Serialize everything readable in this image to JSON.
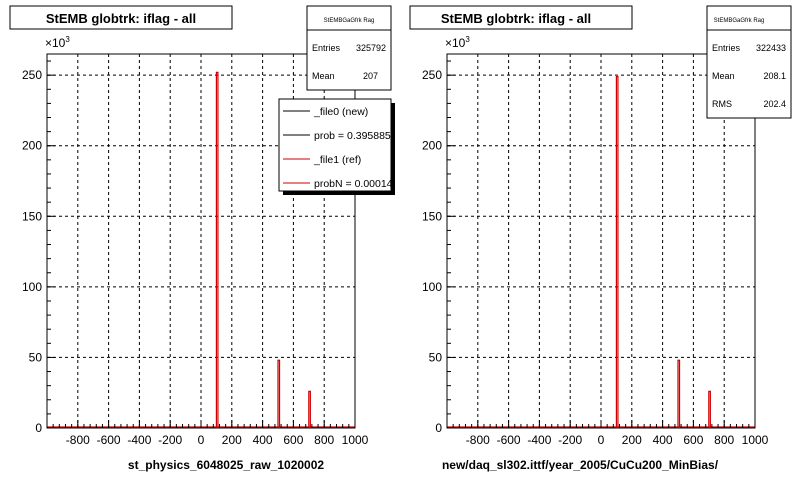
{
  "chart_data": [
    {
      "type": "bar",
      "title": "StEMB globtrk: iflag - all",
      "xlabel": "st_physics_6048025_raw_1020002",
      "ylabel": "",
      "x_multiplier_label": "×10",
      "x_multiplier_exp": "3",
      "xlim": [
        -1000,
        1000
      ],
      "ylim": [
        0,
        265000
      ],
      "x_ticks": [
        -800,
        -600,
        -400,
        -200,
        0,
        200,
        400,
        600,
        800,
        1000
      ],
      "y_ticks": [
        0,
        50,
        100,
        150,
        200,
        250
      ],
      "y_tick_labels": [
        "0",
        "50",
        "100",
        "150",
        "200",
        "250"
      ],
      "grid": true,
      "series": [
        {
          "name": "_file1 (ref)",
          "color": "#cc0000",
          "x": [
            100,
            500,
            700
          ],
          "values": [
            252000,
            48000,
            26000
          ]
        }
      ],
      "stats": {
        "name": "StEMBGaGfrk Rag",
        "rows": [
          {
            "label": "Entries",
            "value": "325792"
          },
          {
            "label": "Mean",
            "value": "207"
          }
        ]
      },
      "legend": {
        "placement": "top-right",
        "entries": [
          {
            "label": "_file0 (new)",
            "color": "#000000"
          },
          {
            "label": "prob = 0.395885",
            "color": "#000000"
          },
          {
            "label": "_file1 (ref)",
            "color": "#cc0000"
          },
          {
            "label": "probN = 0.00014",
            "color": "#cc0000"
          }
        ]
      }
    },
    {
      "type": "bar",
      "title": "StEMB globtrk: iflag - all",
      "xlabel": "new/daq_sl302.ittf/year_2005/CuCu200_MinBias/",
      "ylabel": "",
      "x_multiplier_label": "×10",
      "x_multiplier_exp": "3",
      "xlim": [
        -1000,
        1000
      ],
      "ylim": [
        0,
        265000
      ],
      "x_ticks": [
        -800,
        -600,
        -400,
        -200,
        0,
        200,
        400,
        600,
        800,
        1000
      ],
      "y_ticks": [
        0,
        50,
        100,
        150,
        200,
        250
      ],
      "y_tick_labels": [
        "0",
        "50",
        "100",
        "150",
        "200",
        "250"
      ],
      "grid": true,
      "series": [
        {
          "name": "",
          "color": "#cc0000",
          "x": [
            100,
            500,
            700
          ],
          "values": [
            249000,
            48000,
            26000
          ]
        }
      ],
      "stats": {
        "name": "StEMBGaGfrk Rag",
        "rows": [
          {
            "label": "Entries",
            "value": "322433"
          },
          {
            "label": "Mean",
            "value": "208.1"
          },
          {
            "label": "RMS",
            "value": "202.4"
          }
        ]
      }
    }
  ]
}
